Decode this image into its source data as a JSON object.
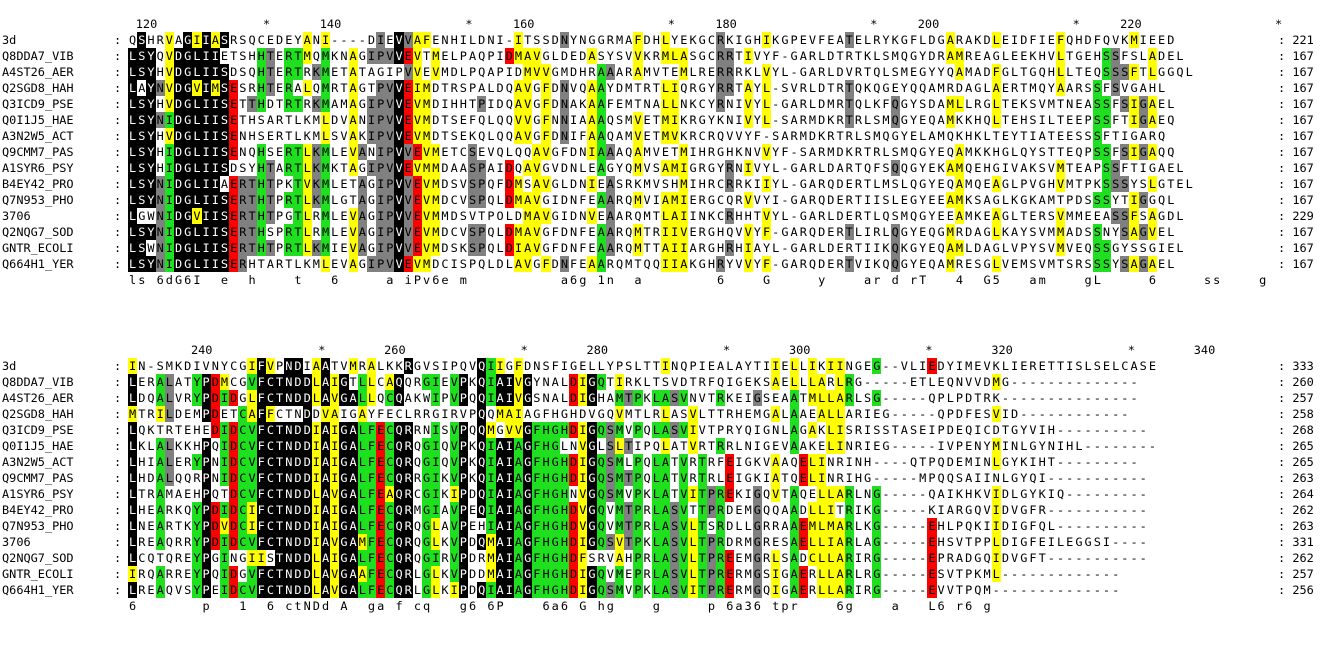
{
  "colors": {
    "black": "#000000",
    "green": "#1ee01e",
    "yellow": "#ffff00",
    "grey": "#808080",
    "red": "#ff0000",
    "blue": "#1010ff"
  },
  "blocks": [
    {
      "ruler": [
        {
          "label": "120",
          "col": 2
        },
        {
          "label": "*",
          "col": 15
        },
        {
          "label": "140",
          "col": 22
        },
        {
          "label": "*",
          "col": 37
        },
        {
          "label": "160",
          "col": 43
        },
        {
          "label": "*",
          "col": 59
        },
        {
          "label": "180",
          "col": 65
        },
        {
          "label": "*",
          "col": 81
        },
        {
          "label": "200",
          "col": 87
        },
        {
          "label": "*",
          "col": 103
        },
        {
          "label": "220",
          "col": 109
        },
        {
          "label": "*",
          "col": 125
        }
      ],
      "rows": [
        {
          "name": "3d",
          "seq": "QSHRVAGIIASRSQCEDEYANI----DIEVVAFENHILDNI-ITSSDNYNGGRMAFDHLYEKGCRKIGHIKGPEVFEATELRYKGFLDGARAKDLEIDFIEFQHDFQVKMIEED",
          "end": "221"
        },
        {
          "name": "Q8DDA7_VIB",
          "seq": "LSYQVDGLIIETSHHTERTMQMKNAGIPVVEVTMELPAQPIDMAVGLDEDASYSVVKRMLASGCRRTIVYF-GARLDTRTKLSMQGYDRAMREAGLEEKHVLTGEHSSFSLADEL",
          "end": "167"
        },
        {
          "name": "A4ST26_AER",
          "seq": "LSYHVDGLIISDSQHTERTRKMETATAGIPVVEVMDLPQAPIDMVVGMDHRAAARAMVTEMLRERRRKLVYL-GARLDVRTQLSMEGYYQAMADFGLTGQHLLTEQSSSFTLGGQL",
          "end": "167"
        },
        {
          "name": "Q2SGD8_HAH",
          "seq": "LAYNVDGVIMSESRHTERALQMRTAGTPVVEIMDTRSPALDQAVGFDNVQAAYDMTRTLIQRGYRRTAYL-SVRLDTRTQKQGEYQQAMRDAGLAERTMQYAARSSFSVGAHL",
          "end": "167"
        },
        {
          "name": "Q3ICD9_PSE",
          "seq": "LSYHVDGLIISETTHDTRTRKMAMAGIPVVEVMDIHHTPIDQAVGFDNAKAAFEMTNALLNKCYRNIVYL-GARLDMRTQLKFQGYSDAMLLRGLTEKSVMTNEASSFSIGAEL",
          "end": "167"
        },
        {
          "name": "Q0I1J5_HAE",
          "seq": "LSYNIDGLIISETHSARTLKMLDVANIPVVEVMDTSEFQLQQVVGFNNIAAAQSMVETMIKRGYKNIVYL-SARMDKRTRLSMQGYEQAMKKHQLTEHSILTEEPSSFTIGAEQ",
          "end": "167"
        },
        {
          "name": "A3N2W5_ACT",
          "seq": "LSYHVDGLIISENHSERTLKMLSVAKIPVVEVMDTSEKQLQQAVGFDNIFAAQAMVETMVKRCRQVVYF-SARMDKRTRLSMQGYELAMQKHKLTEYTIATEESSSFTIGARQ",
          "end": "167"
        },
        {
          "name": "Q9CMM7_PAS",
          "seq": "LSYHIDGLIISENQHSERTLKMLEVANIPVVEVMETCSEVQLQQAVGFDNIAAAQAMVETMIHRGHKNVVYF-SARMDKRTRLSMQGYEQAMKKHGLQYSTTEQPSSFSIGAQQ",
          "end": "167"
        },
        {
          "name": "A1SYR6_PSY",
          "seq": "LSYHIDGLIISDSYHTARTLKMKTAGIPVVEVMMDAASPAIDQAVGVDNLEAGYQMVSAMIGRGYRNIVYL-GARLDARTQFSQQGYEKAMQEHGIVAKSVMTEAPSSFTIGAEL",
          "end": "167"
        },
        {
          "name": "B4EY42_PRO",
          "seq": "LSYNIDGLIIAERTHTPKTVKMLETAGIPVVEVMDSVSPQFDMSAVGLDNIEASRKMVSHMIHRCRRKIIYL-GARQDERTLMSLQGYEQAMQEAGLPVGHVMTPKSSSYSLGTEL",
          "end": "167"
        },
        {
          "name": "Q7N953_PHO",
          "seq": "LSYNIDGLIISERTHTPRTLKMLGTAGIPVVEVMDCVSPQLDMAVGIDNFEAARQMVIAMIERGCQRVVYI-GARQDERTIISLEGYEEAMKSAGLKGKAMTPDSSSYTIGGQL",
          "end": "167"
        },
        {
          "name": "3706",
          "seq": "LGWNIDGVIISERTHTPGTLRMLEVAGIPVVEVMMDSVTPOLDMAVGIDNVEAARQMTLAIINKCRHHTVYL-GARLDERTLQSMQGYEEAMKEAGLTERSVMMEEASSFSAGDL",
          "end": "229"
        },
        {
          "name": "Q2NQG7_SOD",
          "seq": "LSYNIDGLIISERTHSPRTLRMLEVAGIPVVEVMDCVSPQLDMAVGFDNFEAARQMTRIIVERGHQVVYF-GARQDERTLIRLQGYEQGMRDAGLKAYSVMMADSSNYSAGVEL",
          "end": "167"
        },
        {
          "name": "GNTR_ECOLI",
          "seq": "LSWNIDGLIISERTHTPRTLKMIEVAGIPVVEVMDSKSPQLDIAVGFDNFEAARQMTTAIIARGHRHIAYL-GARLDERTIIKQKGYEQAMLDAGLVPYSVMVEQSSGYSSGIEL",
          "end": "167"
        },
        {
          "name": "Q664H1_YER",
          "seq": "LSYNIDGLIISERHTARTLKMLEVAGIPVVEVMDCISPQLDLAVGFDNFEAARQMTQQIIAKGHRYVVYF-GARQDERTVIKQQGYEQAMRESGLVEMSVMTSRSSSYSAGAEL",
          "end": "167"
        }
      ],
      "consensus": "ls 6dG6I  e  h    t   6     a iPv6e m          a6g 1n  a        6    G     y    ar d rT   4  G5   am    gL     6     ss    g"
    },
    {
      "ruler": [
        {
          "label": "240",
          "col": 8
        },
        {
          "label": "*",
          "col": 21
        },
        {
          "label": "260",
          "col": 29
        },
        {
          "label": "*",
          "col": 43
        },
        {
          "label": "280",
          "col": 51
        },
        {
          "label": "*",
          "col": 65
        },
        {
          "label": "300",
          "col": 73
        },
        {
          "label": "*",
          "col": 87
        },
        {
          "label": "320",
          "col": 95
        },
        {
          "label": "*",
          "col": 109
        },
        {
          "label": "340",
          "col": 117
        }
      ],
      "rows": [
        {
          "name": "3d",
          "seq": "IN-SMKDIVNYCGIFVPNDIAATVMRALKKRGVSIPQVQIIGFDNSFIGELLYPSLTTINQPIEALAYTIIELLIKIINGEG--VLIEDYIMEVKLIERETTISLSELCASE",
          "end": "333"
        },
        {
          "name": "Q8DDA7_VIB",
          "seq": "LERALATYPDMCGVFCTNDDLAIGTLLCAQQRGIEVPKQIAIVGYNALDIGQTIRKLTSVDTRFQIGEKSAELLLARLRG-----ETLEQNVVDMG--------------",
          "end": "260"
        },
        {
          "name": "A4ST26_AER",
          "seq": "LDQALVRYPDIDGLFCTNDDLAVGALLQCQAKWIPVPQQIAIVGSNALDIGHAMTPKLASVNVTRKEIGSEAATMLLARLSG-----QPLPDTRK---------------",
          "end": "257"
        },
        {
          "name": "Q2SGD8_HAH",
          "seq": "MTRILDEMPDETCAFFCTNDDVAIGAYFECLRRGIRVPQQMAIAGFHGHDVGQVMTLRLASVLTTRHEMGALAAEALLARIEG-----QPDFESVID------------",
          "end": "258"
        },
        {
          "name": "Q3ICD9_PSE",
          "seq": "LQKTRTEHEDIDCVFCTNDDIAIGALFECQRRNISVPQQMGVVGFHGHDIGQSMVPQLASVIVTPRYQIGNLAGAKLISRISSTASEIPDEQICDTGYVIH----------",
          "end": "268"
        },
        {
          "name": "Q0I1J5_HAE",
          "seq": "LKLALKKHPQIDCVFCTNDDIAIGALFECQRQGIQVPKQIAIAGFHGLNVGLSLTIPQLATVRTRRLNIGEVAAKELINRIEG-----IVPENYMINLGYNIHL--------",
          "end": "265"
        },
        {
          "name": "A3N2W5_ACT",
          "seq": "LHIALERYPNIDCVFCTNDDIAIGALFECQRQGIQVPKQIAIAGFHGHDIGQSMLPQLATVRTRFEIGKVAAQELINRINH----QTPQDEMINLGYKIHT---------",
          "end": "265"
        },
        {
          "name": "Q9CMM7_PAS",
          "seq": "LHDALQQRPNIDCVFCTNDDIAIGALFECQRRGIKVPKQIAIAGFHGHDIGQSMTPQLATVRTRLEIGKIATQELINRIHG-----MPQQSAIINLGYQI-----------",
          "end": "263"
        },
        {
          "name": "A1SYR6_PSY",
          "seq": "LTRAMAEHPQTDCVFCTNDDLAVGALFEAQRCGIKIPDQIAIAGFHGHNVGQSMVPKLATVITPREKIGQVTAQELLARLNG-----QAIKHKVIDLGYKIQ---------",
          "end": "264"
        },
        {
          "name": "B4EY42_PRO",
          "seq": "LHEARKQYPDIDCIFCTNDDIAIGALFECQRMGIAVPEQIAIAGFHGHDVGQVMTPRLASVTTPRDEMGQQAADLLITRIKG-----KIARGQVIDVGFR-----------",
          "end": "262"
        },
        {
          "name": "Q7N953_PHO",
          "seq": "LNEARTKYPDVDCIFCTNDDIAIGALFECQRQGLAVPEHIAIAGFHGHDVGQVMTPRLASVLTSRDLLGRRAAEMLMARLKG-----EHLPQKIIDIGFQL----------",
          "end": "263"
        },
        {
          "name": "3706",
          "seq": "LREAQRRYPDIDCVFCTNDDIAVGAMFECQRQGLKVPDQMAIAGFHGHDIGQSVTPKLASVLTPRDRMGRESAELLIARLAG-----EHSVTPPLDIGFEILEGGSI----",
          "end": "331"
        },
        {
          "name": "Q2NQG7_SOD",
          "seq": "LCQTQREYPGINGIISTNDDLAIGALFECQRQGIRVPDRMAIAGFHGHDFSRVAHPRLASVLTPREEMGRLSADCLLARIRG-----EPRADGQIDVGFT-----------",
          "end": "262"
        },
        {
          "name": "GNTR_ECOLI",
          "seq": "IRQARREYPQIDGVFCTNDDLAVGAAFECQRLGLKVPDDMAIAGFHGHDIGQVMEPRLASVLTPRERMGSIGAERLLARLRG-----ESVTPKML-------------",
          "end": "257"
        },
        {
          "name": "Q664H1_YER",
          "seq": "LREAQVSYPEIDCVFCTNDDLAVGALFECQRLGLKIPDQIAIAGFHGHDIGQSMVPKLASVITPRERMGQIGAERLLARIRG-----EVVTPQM--------------",
          "end": "256"
        }
      ],
      "consensus": "6       p   1  6 ctNDd A  ga f cq   g6 6P    6a6 G hg    g     p 6a36 tpr    6g    a   L6 r6 g"
    }
  ]
}
